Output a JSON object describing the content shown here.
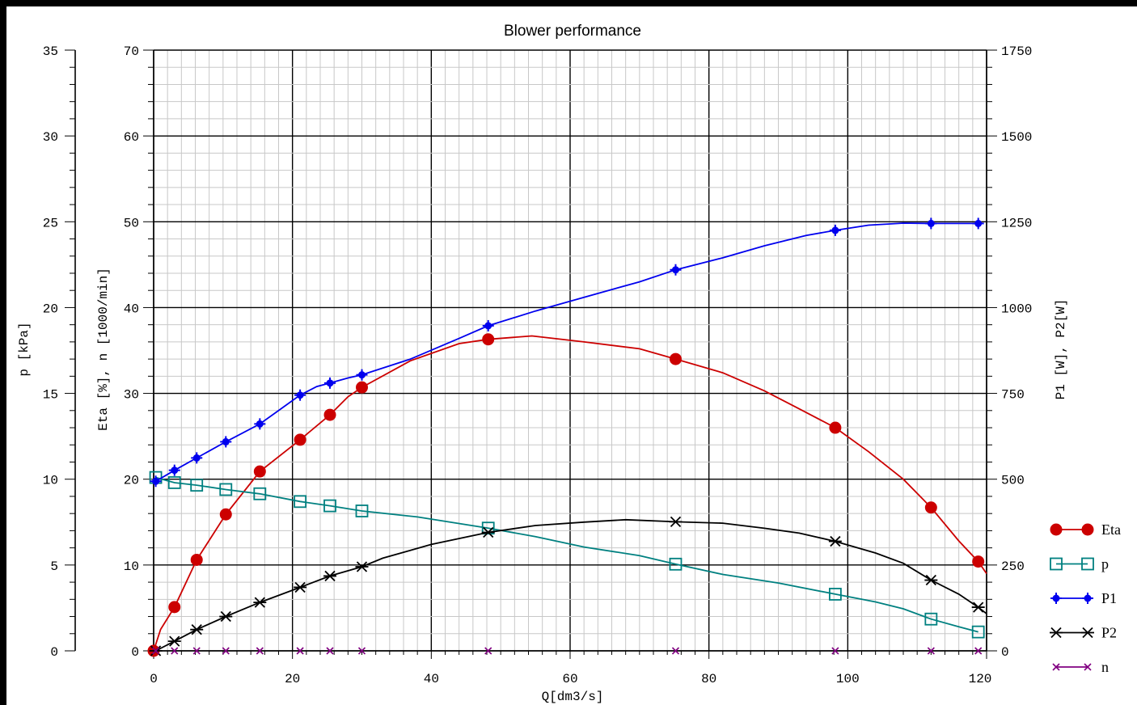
{
  "chart_data": {
    "type": "line",
    "title": "Blower performance",
    "xlabel": "Q[dm3/s]",
    "ylabel_left_outer": "p [kPa]",
    "ylabel_left_inner": "Eta [%], n [1000/min]",
    "ylabel_right": "P1 [W], P2[W]",
    "xlim": [
      0,
      120
    ],
    "ylim_left_outer": [
      0,
      35
    ],
    "ylim_left_inner": [
      0,
      70
    ],
    "ylim_right": [
      0,
      1750
    ],
    "x_ticks": [
      "0",
      "20",
      "40",
      "60",
      "80",
      "100",
      "120"
    ],
    "y_ticks_left_outer": [
      "0",
      "5",
      "10",
      "15",
      "20",
      "25",
      "30",
      "35"
    ],
    "y_ticks_left_inner": [
      "0",
      "10",
      "20",
      "30",
      "40",
      "50",
      "60",
      "70"
    ],
    "y_ticks_right": [
      "0",
      "250",
      "500",
      "750",
      "1000",
      "1250",
      "1500",
      "1750"
    ],
    "grid": true,
    "legend_position": "right",
    "series": [
      {
        "name": "Eta",
        "axis": "left_inner",
        "color": "#cc0000",
        "marker": "circle",
        "points": [
          [
            0,
            0
          ],
          [
            3,
            5.1
          ],
          [
            6.2,
            10.6
          ],
          [
            10.4,
            15.9
          ],
          [
            15.3,
            20.9
          ],
          [
            21.1,
            24.6
          ],
          [
            25.4,
            27.5
          ],
          [
            30,
            30.7
          ],
          [
            48.2,
            36.3
          ],
          [
            75.2,
            34
          ],
          [
            98.2,
            26
          ],
          [
            112,
            16.7
          ],
          [
            118.8,
            10.4
          ]
        ],
        "curve": [
          [
            0,
            0
          ],
          [
            1,
            2.5
          ],
          [
            3,
            5.1
          ],
          [
            6.2,
            10.6
          ],
          [
            10.4,
            15.9
          ],
          [
            15.3,
            20.9
          ],
          [
            21.1,
            24.6
          ],
          [
            25.4,
            27.5
          ],
          [
            28,
            29.6
          ],
          [
            30,
            30.7
          ],
          [
            37,
            33.8
          ],
          [
            44,
            35.8
          ],
          [
            48.2,
            36.3
          ],
          [
            54.5,
            36.7
          ],
          [
            62,
            36
          ],
          [
            70,
            35.2
          ],
          [
            75.2,
            34
          ],
          [
            82,
            32.4
          ],
          [
            88,
            30.3
          ],
          [
            93,
            28.2
          ],
          [
            98.2,
            26
          ],
          [
            103,
            23.2
          ],
          [
            108,
            20
          ],
          [
            112,
            16.7
          ],
          [
            116,
            12.8
          ],
          [
            118.8,
            10.4
          ],
          [
            120,
            9
          ]
        ]
      },
      {
        "name": "p",
        "axis": "left_outer",
        "color": "#008080",
        "marker": "square",
        "points": [
          [
            0.3,
            10.1
          ],
          [
            3,
            9.8
          ],
          [
            6.2,
            9.65
          ],
          [
            10.4,
            9.4
          ],
          [
            15.3,
            9.15
          ],
          [
            21.1,
            8.7
          ],
          [
            25.4,
            8.45
          ],
          [
            30,
            8.15
          ],
          [
            48.2,
            7.15
          ],
          [
            75.2,
            5.05
          ],
          [
            98.2,
            3.3
          ],
          [
            112,
            1.85
          ],
          [
            118.8,
            1.1
          ]
        ],
        "curve": [
          [
            0.3,
            10.1
          ],
          [
            3,
            9.8
          ],
          [
            6.2,
            9.65
          ],
          [
            10.4,
            9.4
          ],
          [
            15.3,
            9.15
          ],
          [
            21.1,
            8.7
          ],
          [
            25.4,
            8.45
          ],
          [
            30,
            8.15
          ],
          [
            38,
            7.8
          ],
          [
            48.2,
            7.15
          ],
          [
            55,
            6.65
          ],
          [
            62,
            6.05
          ],
          [
            70,
            5.55
          ],
          [
            75.2,
            5.05
          ],
          [
            82,
            4.45
          ],
          [
            90,
            3.95
          ],
          [
            98.2,
            3.3
          ],
          [
            104,
            2.85
          ],
          [
            108,
            2.45
          ],
          [
            112,
            1.85
          ],
          [
            116,
            1.4
          ],
          [
            118.8,
            1.1
          ]
        ]
      },
      {
        "name": "P1",
        "axis": "right",
        "color": "#0000ee",
        "marker": "plus-dot",
        "points": [
          [
            0.3,
            494
          ],
          [
            3,
            526
          ],
          [
            6.2,
            562
          ],
          [
            10.4,
            609
          ],
          [
            15.3,
            661
          ],
          [
            21.1,
            745
          ],
          [
            25.4,
            780
          ],
          [
            30,
            804
          ],
          [
            48.2,
            947
          ],
          [
            75.2,
            1110
          ],
          [
            98.2,
            1225
          ],
          [
            112,
            1245
          ],
          [
            118.8,
            1245
          ]
        ],
        "curve": [
          [
            0.3,
            494
          ],
          [
            3,
            526
          ],
          [
            6.2,
            562
          ],
          [
            10.4,
            609
          ],
          [
            15.3,
            661
          ],
          [
            21.1,
            745
          ],
          [
            23.5,
            770
          ],
          [
            25.4,
            780
          ],
          [
            28,
            795
          ],
          [
            30,
            804
          ],
          [
            37,
            850
          ],
          [
            44,
            910
          ],
          [
            48.2,
            947
          ],
          [
            55,
            990
          ],
          [
            62,
            1030
          ],
          [
            70,
            1075
          ],
          [
            75.2,
            1110
          ],
          [
            82,
            1145
          ],
          [
            88,
            1180
          ],
          [
            94,
            1210
          ],
          [
            98.2,
            1225
          ],
          [
            103,
            1240
          ],
          [
            108,
            1246
          ],
          [
            112,
            1245
          ],
          [
            118.8,
            1245
          ]
        ]
      },
      {
        "name": "P2",
        "axis": "right",
        "color": "#000000",
        "marker": "asterisk",
        "points": [
          [
            0.3,
            0
          ],
          [
            3,
            28
          ],
          [
            6.2,
            62
          ],
          [
            10.4,
            100
          ],
          [
            15.3,
            141
          ],
          [
            21.1,
            185
          ],
          [
            25.4,
            218
          ],
          [
            30,
            245
          ],
          [
            48.2,
            345
          ],
          [
            75.2,
            376
          ],
          [
            98.2,
            319
          ],
          [
            112,
            206
          ],
          [
            118.8,
            127
          ]
        ],
        "curve": [
          [
            0.3,
            0
          ],
          [
            3,
            28
          ],
          [
            6.2,
            62
          ],
          [
            10.4,
            100
          ],
          [
            15.3,
            141
          ],
          [
            21.1,
            185
          ],
          [
            25.4,
            218
          ],
          [
            30,
            245
          ],
          [
            33,
            270
          ],
          [
            40,
            310
          ],
          [
            48.2,
            345
          ],
          [
            55,
            365
          ],
          [
            62,
            375
          ],
          [
            68,
            382
          ],
          [
            75.2,
            376
          ],
          [
            82,
            372
          ],
          [
            88,
            357
          ],
          [
            93,
            343
          ],
          [
            98.2,
            319
          ],
          [
            104,
            285
          ],
          [
            108,
            255
          ],
          [
            112,
            206
          ],
          [
            116,
            165
          ],
          [
            118.8,
            127
          ],
          [
            120,
            108
          ]
        ]
      },
      {
        "name": "n",
        "axis": "left_inner",
        "color": "#800080",
        "marker": "x",
        "points": [
          [
            0.3,
            0
          ],
          [
            3,
            0
          ],
          [
            6.2,
            0
          ],
          [
            10.4,
            0
          ],
          [
            15.3,
            0
          ],
          [
            21.1,
            0
          ],
          [
            25.4,
            0
          ],
          [
            30,
            0
          ],
          [
            48.2,
            0
          ],
          [
            75.2,
            0
          ],
          [
            98.2,
            0
          ],
          [
            112,
            0
          ],
          [
            118.8,
            0
          ]
        ],
        "curve": []
      }
    ]
  }
}
